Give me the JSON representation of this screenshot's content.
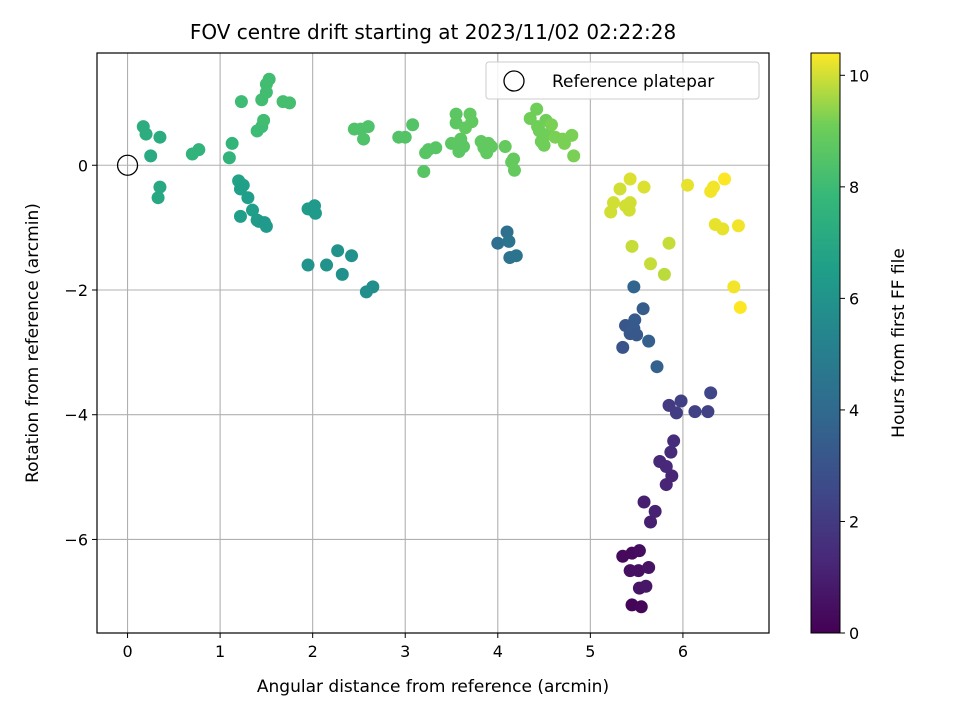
{
  "chart_data": {
    "type": "scatter",
    "title": "FOV centre drift starting at 2023/11/02 02:22:28",
    "xlabel": "Angular distance from reference (arcmin)",
    "ylabel": "Rotation from reference (arcmin)",
    "xlim": [
      -0.33,
      6.93
    ],
    "ylim": [
      -7.5,
      1.8
    ],
    "xticks": [
      0,
      1,
      2,
      3,
      4,
      5,
      6
    ],
    "yticks": [
      -6,
      -4,
      -2,
      0
    ],
    "grid": true,
    "colorbar": {
      "label": "Hours from first FF file",
      "range": [
        0,
        10.4
      ],
      "ticks": [
        0,
        2,
        4,
        6,
        8,
        10
      ],
      "colormap": "viridis"
    },
    "legend": {
      "position": "top-right",
      "entries": [
        {
          "label": "Reference platepar",
          "marker": "open-circle"
        }
      ]
    },
    "reference_point": {
      "x": 0,
      "y": 0
    },
    "points": [
      {
        "x": 5.45,
        "y": -7.05,
        "c": 0.1
      },
      {
        "x": 5.55,
        "y": -7.08,
        "c": 0.2
      },
      {
        "x": 5.35,
        "y": -6.27,
        "c": 0.3
      },
      {
        "x": 5.45,
        "y": -6.22,
        "c": 0.3
      },
      {
        "x": 5.53,
        "y": -6.18,
        "c": 0.4
      },
      {
        "x": 5.43,
        "y": -6.5,
        "c": 0.5
      },
      {
        "x": 5.52,
        "y": -6.5,
        "c": 0.5
      },
      {
        "x": 5.63,
        "y": -6.45,
        "c": 0.6
      },
      {
        "x": 5.53,
        "y": -6.78,
        "c": 0.6
      },
      {
        "x": 5.6,
        "y": -6.75,
        "c": 0.7
      },
      {
        "x": 5.58,
        "y": -5.4,
        "c": 1.0
      },
      {
        "x": 5.65,
        "y": -5.72,
        "c": 1.0
      },
      {
        "x": 5.7,
        "y": -5.55,
        "c": 1.1
      },
      {
        "x": 5.82,
        "y": -5.12,
        "c": 1.2
      },
      {
        "x": 5.88,
        "y": -4.98,
        "c": 1.2
      },
      {
        "x": 5.82,
        "y": -4.83,
        "c": 1.3
      },
      {
        "x": 5.75,
        "y": -4.75,
        "c": 1.3
      },
      {
        "x": 5.87,
        "y": -4.6,
        "c": 1.4
      },
      {
        "x": 5.9,
        "y": -4.42,
        "c": 1.5
      },
      {
        "x": 5.85,
        "y": -3.85,
        "c": 2.0
      },
      {
        "x": 5.93,
        "y": -3.97,
        "c": 2.1
      },
      {
        "x": 5.98,
        "y": -3.78,
        "c": 2.2
      },
      {
        "x": 6.13,
        "y": -3.95,
        "c": 2.3
      },
      {
        "x": 6.27,
        "y": -3.95,
        "c": 2.3
      },
      {
        "x": 6.3,
        "y": -3.65,
        "c": 2.5
      },
      {
        "x": 5.35,
        "y": -2.92,
        "c": 3.0
      },
      {
        "x": 5.38,
        "y": -2.57,
        "c": 3.1
      },
      {
        "x": 5.43,
        "y": -2.7,
        "c": 3.2
      },
      {
        "x": 5.47,
        "y": -2.62,
        "c": 3.3
      },
      {
        "x": 5.48,
        "y": -2.48,
        "c": 3.3
      },
      {
        "x": 5.5,
        "y": -2.72,
        "c": 3.2
      },
      {
        "x": 5.57,
        "y": -2.3,
        "c": 3.4
      },
      {
        "x": 5.63,
        "y": -2.82,
        "c": 3.5
      },
      {
        "x": 5.72,
        "y": -3.23,
        "c": 3.6
      },
      {
        "x": 5.47,
        "y": -1.95,
        "c": 3.8
      },
      {
        "x": 4.0,
        "y": -1.25,
        "c": 4.2
      },
      {
        "x": 4.1,
        "y": -1.07,
        "c": 4.3
      },
      {
        "x": 4.13,
        "y": -1.48,
        "c": 4.4
      },
      {
        "x": 4.2,
        "y": -1.45,
        "c": 4.5
      },
      {
        "x": 4.12,
        "y": -1.22,
        "c": 4.5
      },
      {
        "x": 1.2,
        "y": -0.25,
        "c": 6.7
      },
      {
        "x": 1.22,
        "y": -0.38,
        "c": 6.6
      },
      {
        "x": 1.25,
        "y": -0.32,
        "c": 6.6
      },
      {
        "x": 1.3,
        "y": -0.52,
        "c": 6.5
      },
      {
        "x": 1.35,
        "y": -0.72,
        "c": 6.5
      },
      {
        "x": 1.4,
        "y": -0.88,
        "c": 6.4
      },
      {
        "x": 1.42,
        "y": -0.9,
        "c": 6.4
      },
      {
        "x": 1.48,
        "y": -0.92,
        "c": 6.3
      },
      {
        "x": 1.5,
        "y": -0.98,
        "c": 6.3
      },
      {
        "x": 1.22,
        "y": -0.82,
        "c": 6.5
      },
      {
        "x": 1.95,
        "y": -0.7,
        "c": 6.4
      },
      {
        "x": 2.0,
        "y": -0.72,
        "c": 6.4
      },
      {
        "x": 2.02,
        "y": -0.65,
        "c": 6.3
      },
      {
        "x": 2.03,
        "y": -0.77,
        "c": 6.3
      },
      {
        "x": 1.95,
        "y": -1.6,
        "c": 6.1
      },
      {
        "x": 2.15,
        "y": -1.6,
        "c": 6.0
      },
      {
        "x": 2.27,
        "y": -1.37,
        "c": 6.0
      },
      {
        "x": 2.32,
        "y": -1.75,
        "c": 5.9
      },
      {
        "x": 2.42,
        "y": -1.45,
        "c": 5.9
      },
      {
        "x": 2.58,
        "y": -2.03,
        "c": 5.8
      },
      {
        "x": 2.65,
        "y": -1.95,
        "c": 5.8
      },
      {
        "x": 0.35,
        "y": -0.35,
        "c": 7.0
      },
      {
        "x": 0.33,
        "y": -0.52,
        "c": 7.0
      },
      {
        "x": 0.25,
        "y": 0.15,
        "c": 7.1
      },
      {
        "x": 0.17,
        "y": 0.62,
        "c": 7.3
      },
      {
        "x": 0.2,
        "y": 0.5,
        "c": 7.3
      },
      {
        "x": 0.35,
        "y": 0.45,
        "c": 7.2
      },
      {
        "x": 0.7,
        "y": 0.18,
        "c": 7.6
      },
      {
        "x": 0.77,
        "y": 0.25,
        "c": 7.6
      },
      {
        "x": 1.1,
        "y": 0.12,
        "c": 7.6
      },
      {
        "x": 1.13,
        "y": 0.35,
        "c": 7.7
      },
      {
        "x": 1.23,
        "y": 1.02,
        "c": 8.0
      },
      {
        "x": 1.4,
        "y": 0.55,
        "c": 8.0
      },
      {
        "x": 1.45,
        "y": 0.62,
        "c": 8.0
      },
      {
        "x": 1.47,
        "y": 0.72,
        "c": 8.1
      },
      {
        "x": 1.45,
        "y": 1.05,
        "c": 8.1
      },
      {
        "x": 1.5,
        "y": 1.17,
        "c": 8.1
      },
      {
        "x": 1.5,
        "y": 1.3,
        "c": 8.1
      },
      {
        "x": 1.53,
        "y": 1.38,
        "c": 8.1
      },
      {
        "x": 1.68,
        "y": 1.02,
        "c": 8.2
      },
      {
        "x": 1.75,
        "y": 1.0,
        "c": 8.2
      },
      {
        "x": 2.45,
        "y": 0.58,
        "c": 8.4
      },
      {
        "x": 2.52,
        "y": 0.58,
        "c": 8.4
      },
      {
        "x": 2.55,
        "y": 0.42,
        "c": 8.4
      },
      {
        "x": 2.6,
        "y": 0.62,
        "c": 8.4
      },
      {
        "x": 2.93,
        "y": 0.45,
        "c": 8.5
      },
      {
        "x": 3.0,
        "y": 0.45,
        "c": 8.5
      },
      {
        "x": 3.08,
        "y": 0.65,
        "c": 8.5
      },
      {
        "x": 3.22,
        "y": 0.2,
        "c": 8.6
      },
      {
        "x": 3.25,
        "y": 0.25,
        "c": 8.6
      },
      {
        "x": 3.33,
        "y": 0.28,
        "c": 8.6
      },
      {
        "x": 3.2,
        "y": -0.1,
        "c": 8.6
      },
      {
        "x": 3.5,
        "y": 0.35,
        "c": 8.7
      },
      {
        "x": 3.55,
        "y": 0.82,
        "c": 8.7
      },
      {
        "x": 3.55,
        "y": 0.68,
        "c": 8.7
      },
      {
        "x": 3.58,
        "y": 0.22,
        "c": 8.7
      },
      {
        "x": 3.6,
        "y": 0.42,
        "c": 8.7
      },
      {
        "x": 3.63,
        "y": 0.3,
        "c": 8.7
      },
      {
        "x": 3.65,
        "y": 0.6,
        "c": 8.8
      },
      {
        "x": 3.7,
        "y": 0.82,
        "c": 8.8
      },
      {
        "x": 3.72,
        "y": 0.7,
        "c": 8.8
      },
      {
        "x": 3.82,
        "y": 0.38,
        "c": 8.8
      },
      {
        "x": 3.85,
        "y": 0.28,
        "c": 8.8
      },
      {
        "x": 3.9,
        "y": 0.35,
        "c": 8.8
      },
      {
        "x": 3.88,
        "y": 0.2,
        "c": 8.8
      },
      {
        "x": 3.93,
        "y": 0.3,
        "c": 8.8
      },
      {
        "x": 4.08,
        "y": 0.3,
        "c": 8.9
      },
      {
        "x": 4.17,
        "y": 0.1,
        "c": 8.9
      },
      {
        "x": 4.18,
        "y": -0.08,
        "c": 8.9
      },
      {
        "x": 4.15,
        "y": 0.05,
        "c": 8.9
      },
      {
        "x": 4.35,
        "y": 0.75,
        "c": 9.1
      },
      {
        "x": 4.42,
        "y": 0.9,
        "c": 9.1
      },
      {
        "x": 4.43,
        "y": 0.62,
        "c": 9.1
      },
      {
        "x": 4.45,
        "y": 0.55,
        "c": 9.1
      },
      {
        "x": 4.47,
        "y": 0.38,
        "c": 9.1
      },
      {
        "x": 4.5,
        "y": 0.32,
        "c": 9.1
      },
      {
        "x": 4.52,
        "y": 0.72,
        "c": 9.1
      },
      {
        "x": 4.55,
        "y": 0.5,
        "c": 9.1
      },
      {
        "x": 4.58,
        "y": 0.65,
        "c": 9.2
      },
      {
        "x": 4.62,
        "y": 0.45,
        "c": 9.2
      },
      {
        "x": 4.7,
        "y": 0.42,
        "c": 9.2
      },
      {
        "x": 4.72,
        "y": 0.35,
        "c": 9.2
      },
      {
        "x": 4.8,
        "y": 0.48,
        "c": 9.2
      },
      {
        "x": 4.82,
        "y": 0.15,
        "c": 9.2
      },
      {
        "x": 5.22,
        "y": -0.75,
        "c": 10.0
      },
      {
        "x": 5.25,
        "y": -0.6,
        "c": 10.0
      },
      {
        "x": 5.32,
        "y": -0.38,
        "c": 10.0
      },
      {
        "x": 5.38,
        "y": -0.65,
        "c": 10.0
      },
      {
        "x": 5.42,
        "y": -0.72,
        "c": 10.0
      },
      {
        "x": 5.43,
        "y": -0.6,
        "c": 10.0
      },
      {
        "x": 5.43,
        "y": -0.22,
        "c": 10.1
      },
      {
        "x": 5.45,
        "y": -1.3,
        "c": 9.9
      },
      {
        "x": 5.58,
        "y": -0.35,
        "c": 10.1
      },
      {
        "x": 5.65,
        "y": -1.58,
        "c": 9.9
      },
      {
        "x": 5.8,
        "y": -1.75,
        "c": 9.8
      },
      {
        "x": 5.85,
        "y": -1.25,
        "c": 9.9
      },
      {
        "x": 6.05,
        "y": -0.32,
        "c": 10.2
      },
      {
        "x": 6.3,
        "y": -0.42,
        "c": 10.3
      },
      {
        "x": 6.33,
        "y": -0.35,
        "c": 10.3
      },
      {
        "x": 6.35,
        "y": -0.95,
        "c": 10.2
      },
      {
        "x": 6.43,
        "y": -1.02,
        "c": 10.2
      },
      {
        "x": 6.45,
        "y": -0.22,
        "c": 10.4
      },
      {
        "x": 6.55,
        "y": -1.95,
        "c": 10.3
      },
      {
        "x": 6.6,
        "y": -0.97,
        "c": 10.3
      },
      {
        "x": 6.62,
        "y": -2.28,
        "c": 10.4
      }
    ]
  }
}
